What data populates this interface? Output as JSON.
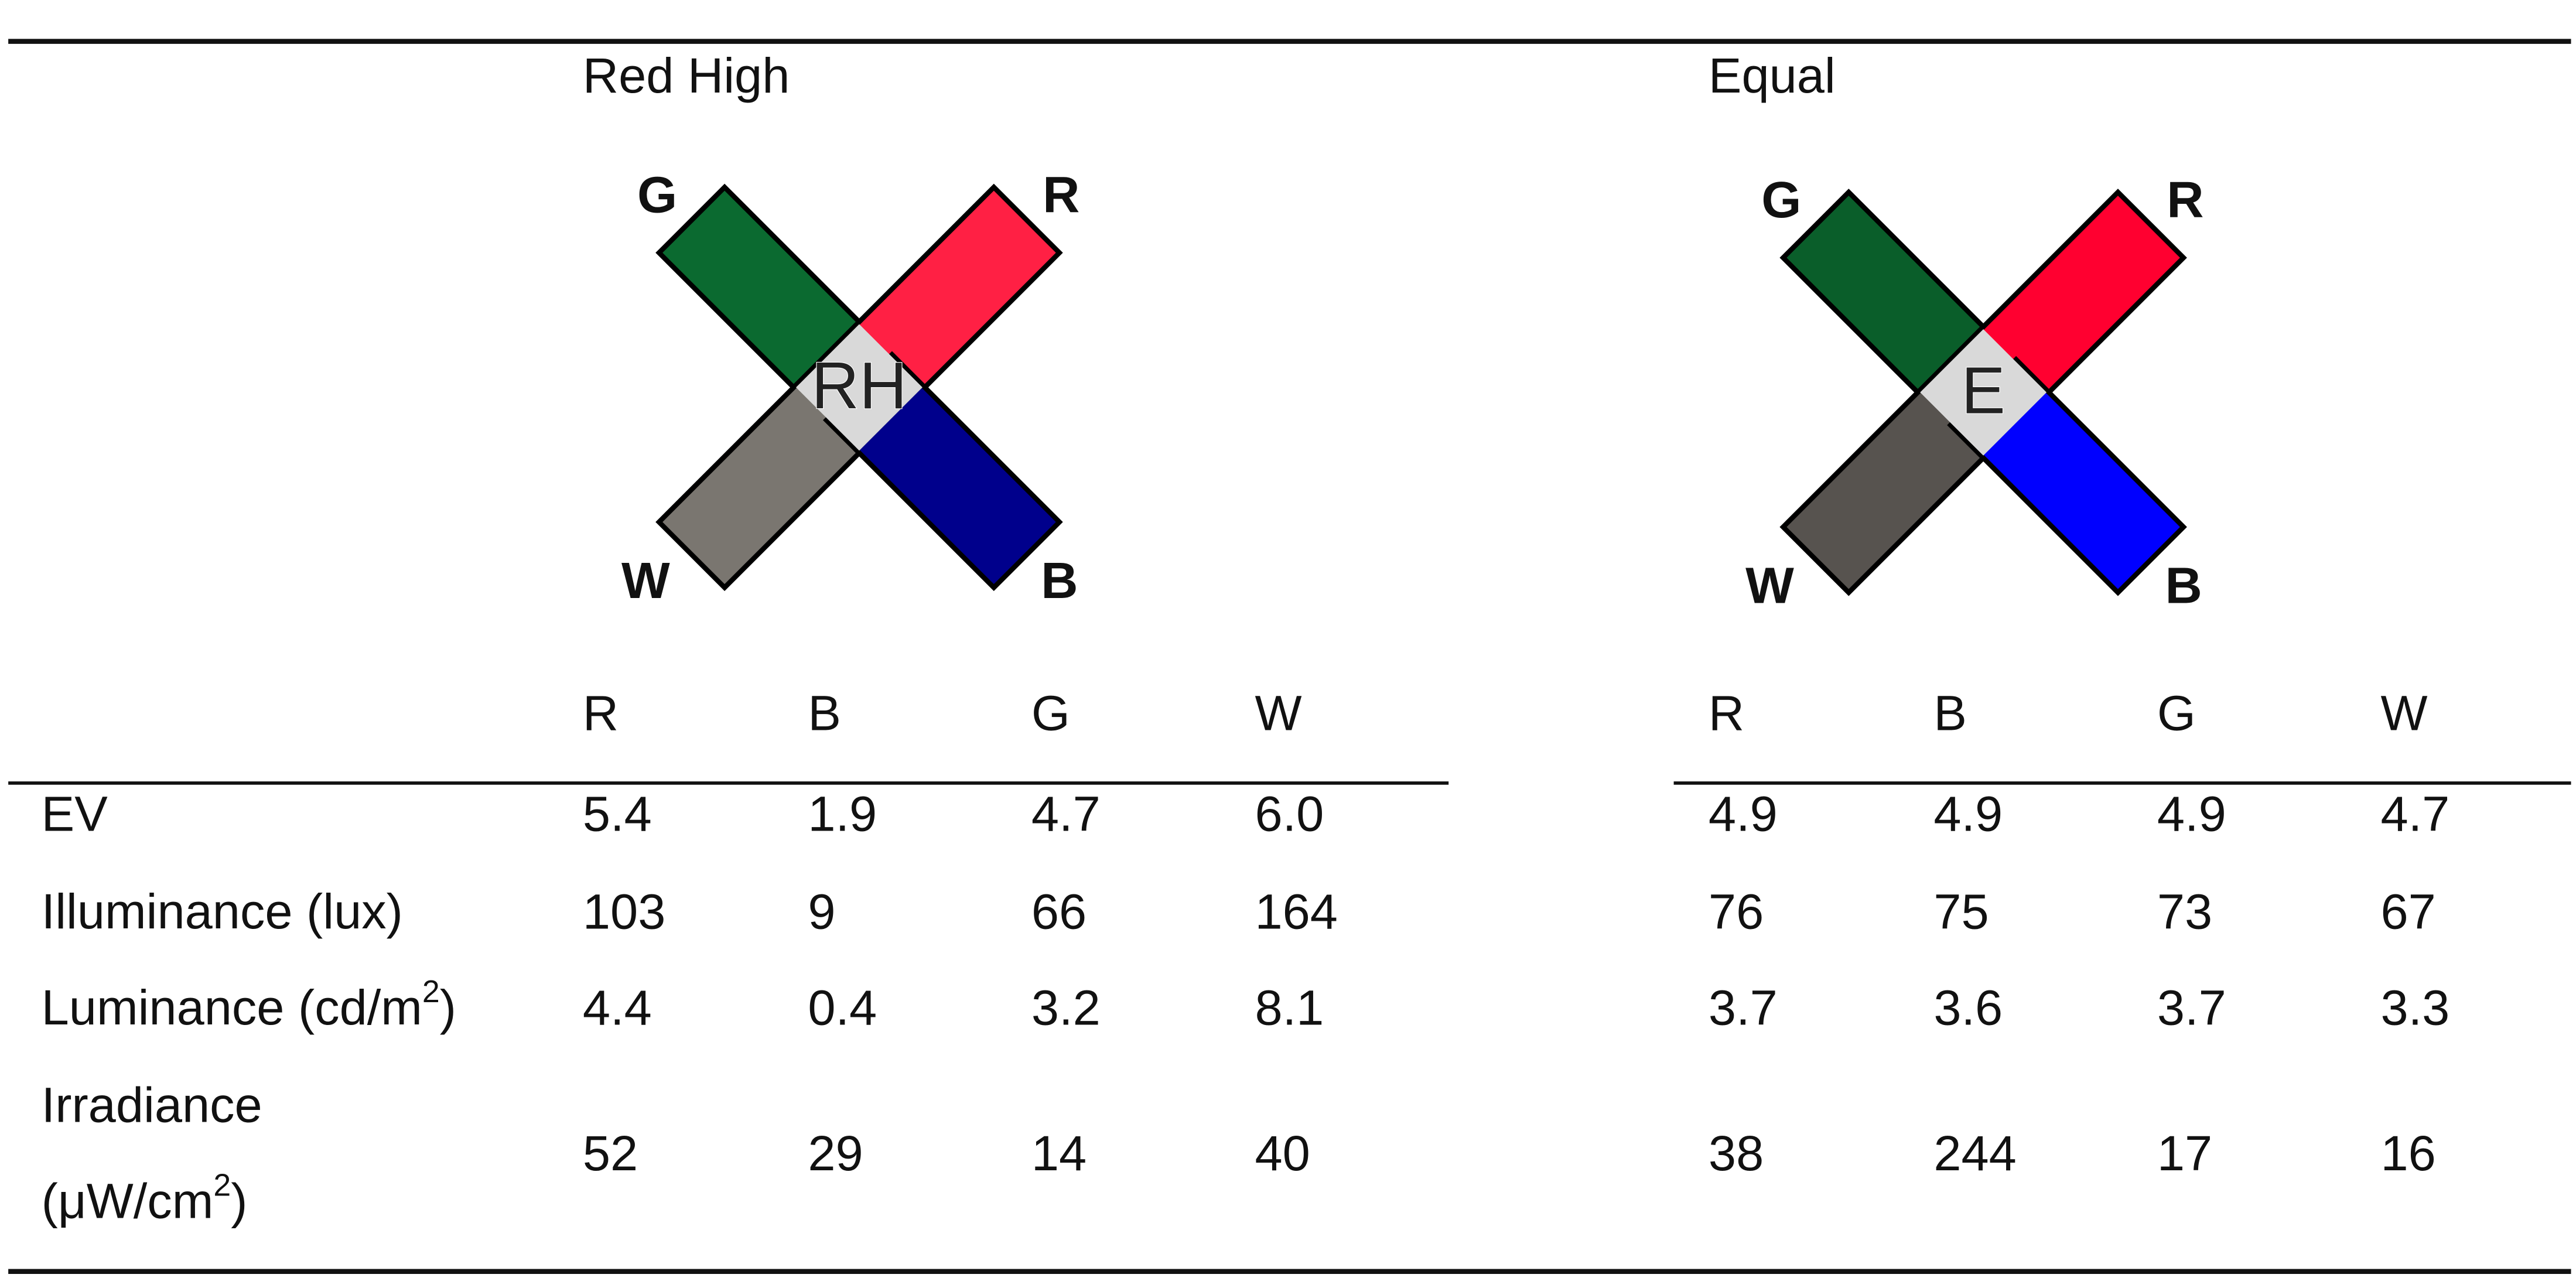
{
  "table": {
    "groups": [
      {
        "title": "Red High",
        "columns": [
          "R",
          "B",
          "G",
          "W"
        ],
        "icon": {
          "center": "RH",
          "center_color": "#d9d9d9",
          "arms": [
            {
              "label": "G",
              "color": "#0b6a30"
            },
            {
              "label": "R",
              "color": "#ff2044"
            },
            {
              "label": "W",
              "color": "#7a7670"
            },
            {
              "label": "B",
              "color": "#00008c"
            }
          ]
        }
      },
      {
        "title": "Equal",
        "columns": [
          "R",
          "B",
          "G",
          "W"
        ],
        "icon": {
          "center": "E",
          "center_color": "#d9d9d9",
          "arms": [
            {
              "label": "G",
              "color": "#0a5e2a"
            },
            {
              "label": "R",
              "color": "#ff0030"
            },
            {
              "label": "W",
              "color": "#57534f"
            },
            {
              "label": "B",
              "color": "#0000ff"
            }
          ]
        }
      }
    ],
    "rows": [
      {
        "label": [
          [
            {
              "text": "EV"
            }
          ]
        ],
        "values": [
          [
            "5.4",
            "1.9",
            "4.7",
            "6.0"
          ],
          [
            "4.9",
            "4.9",
            "4.9",
            "4.7"
          ]
        ]
      },
      {
        "label": [
          [
            {
              "text": "Illuminance (lux)"
            }
          ]
        ],
        "values": [
          [
            "103",
            "9",
            "66",
            "164"
          ],
          [
            "76",
            "75",
            "73",
            "67"
          ]
        ]
      },
      {
        "label": [
          [
            {
              "text": "Luminance (cd/m"
            },
            {
              "text": "2",
              "sup": true
            },
            {
              "text": ")"
            }
          ]
        ],
        "values": [
          [
            "4.4",
            "0.4",
            "3.2",
            "8.1"
          ],
          [
            "3.7",
            "3.6",
            "3.7",
            "3.3"
          ]
        ]
      },
      {
        "label": [
          [
            {
              "text": "Irradiance"
            }
          ],
          [
            {
              "text": "(μW/cm"
            },
            {
              "text": "2",
              "sup": true
            },
            {
              "text": ")"
            }
          ]
        ],
        "values": [
          [
            "52",
            "29",
            "14",
            "40"
          ],
          [
            "38",
            "244",
            "17",
            "16"
          ]
        ]
      }
    ]
  }
}
